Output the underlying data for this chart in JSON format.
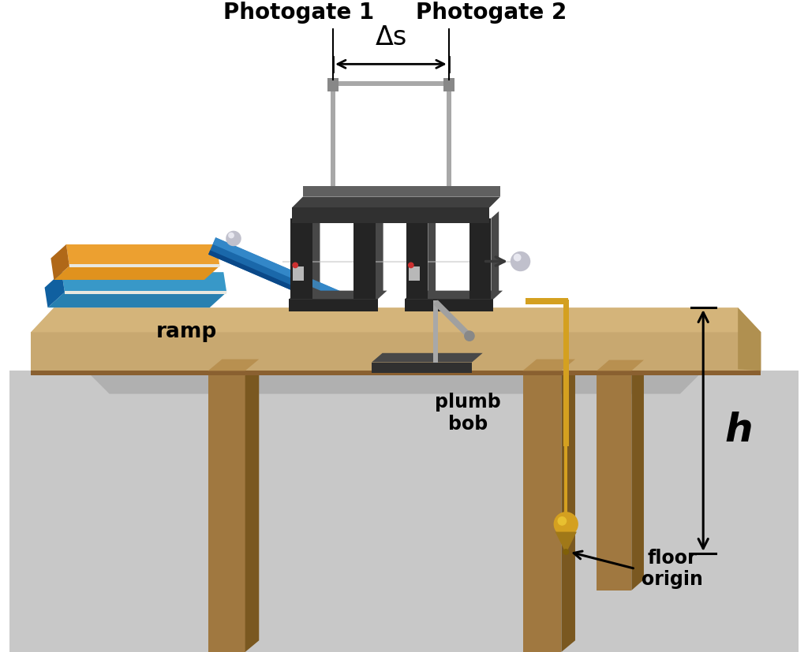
{
  "bg_white": "#ffffff",
  "floor_gray": "#c8c8c8",
  "floor_shadow": "#b8b8b8",
  "table_face": "#c8a870",
  "table_top": "#d4b47a",
  "table_dark": "#8a6030",
  "table_side": "#b09050",
  "leg_front": "#a07840",
  "leg_side": "#7a5820",
  "leg_top": "#b89050",
  "book_orange": "#e0921e",
  "book_orange_top": "#eca030",
  "book_orange_side": "#b06818",
  "book_blue": "#2880b0",
  "book_blue_top": "#3898c8",
  "book_blue_side": "#1060a0",
  "book_pages": "#e8e8e0",
  "ramp_blue": "#1a68aa",
  "ramp_light": "#3a90d0",
  "ramp_dark": "#0a4888",
  "gate_black": "#242424",
  "gate_dark": "#181818",
  "gate_gray": "#484848",
  "gate_mid": "#606060",
  "rod_silver": "#a8a8a8",
  "rod_light": "#d0d0d0",
  "ball_gray": "#c0c0cc",
  "ball_light": "#e8e8f0",
  "plumb_gold": "#d4a020",
  "plumb_dark": "#a07818",
  "plumb_light": "#e8c030",
  "arrow_col": "#000000",
  "photogate1_label": "Photogate 1",
  "photogate2_label": "Photogate 2",
  "ramp_label": "ramp",
  "plumb_label": "plumb\nbob",
  "floor_label": "floor\norigin",
  "h_label": "h",
  "ds_label": "Δs"
}
